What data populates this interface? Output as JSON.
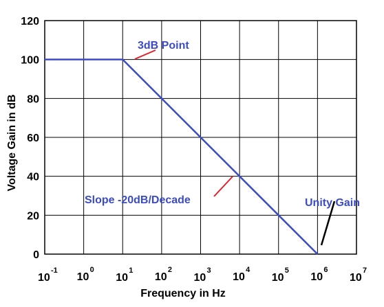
{
  "chart_data": {
    "type": "line",
    "xlabel": "Frequency in Hz",
    "ylabel": "Voltage Gain in dB",
    "x_scale": "log",
    "x_tick_labels": [
      {
        "base": "10",
        "exp": "-1"
      },
      {
        "base": "10",
        "exp": "0"
      },
      {
        "base": "10",
        "exp": "1"
      },
      {
        "base": "10",
        "exp": "2"
      },
      {
        "base": "10",
        "exp": "3"
      },
      {
        "base": "10",
        "exp": "4"
      },
      {
        "base": "10",
        "exp": "5"
      },
      {
        "base": "10",
        "exp": "6"
      },
      {
        "base": "10",
        "exp": "7"
      }
    ],
    "xlim_exp": [
      -1,
      7
    ],
    "ylim": [
      0,
      120
    ],
    "y_ticks": [
      "0",
      "20",
      "40",
      "60",
      "80",
      "100",
      "120"
    ],
    "grid": true,
    "series": [
      {
        "color": "#3b4bc8",
        "points": [
          {
            "x": 0.1,
            "y": 100
          },
          {
            "x": 10,
            "y": 100
          },
          {
            "x": 1000000,
            "y": 0
          }
        ]
      }
    ],
    "annotations": [
      {
        "text": "3dB Point",
        "color": "#3b4bc8",
        "pointer_color": "#e0202a",
        "target": {
          "x": 10,
          "y": 100
        }
      },
      {
        "text": "Slope -20dB/Decade",
        "color": "#3b4bc8",
        "pointer_color": "#e0202a",
        "target": {
          "x": 10000,
          "y": 40
        }
      },
      {
        "text": "Unity Gain",
        "color": "#3b4bc8",
        "pointer_color": "#000000",
        "target": {
          "x": 1000000,
          "y": 0
        }
      }
    ]
  }
}
